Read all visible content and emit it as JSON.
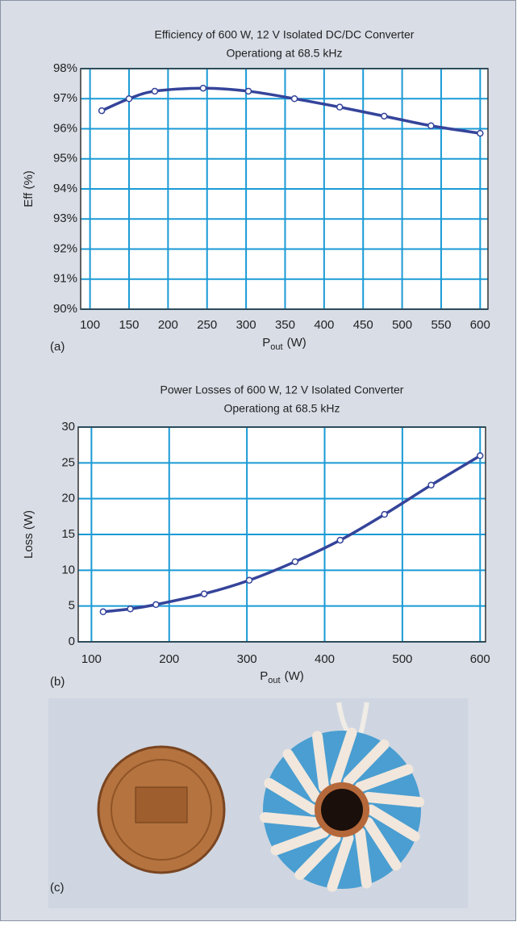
{
  "chart_data": [
    {
      "type": "line",
      "title": [
        "Efficiency of 600 W, 12 V Isolated DC/DC Converter",
        "Operationg at 68.5 kHz"
      ],
      "xlabel": {
        "base": "P",
        "sub": "out",
        "unit": "(W)"
      },
      "ylabel": "Eff (%)",
      "x": [
        115,
        150,
        183,
        245,
        303,
        362,
        420,
        477,
        537,
        600
      ],
      "values": [
        96.6,
        97.0,
        97.25,
        97.35,
        97.25,
        97.0,
        96.72,
        96.42,
        96.1,
        95.85
      ],
      "color": "#35449a",
      "grid_color": "#1a9ad6",
      "markers": true,
      "grid": true,
      "xlim": [
        88,
        610
      ],
      "xticks": [
        100,
        150,
        200,
        250,
        300,
        350,
        400,
        450,
        500,
        550,
        600
      ],
      "ylim": [
        90,
        98
      ],
      "yticks": [
        {
          "value": 90,
          "label": "90%"
        },
        {
          "value": 91,
          "label": "91%"
        },
        {
          "value": 92,
          "label": "92%"
        },
        {
          "value": 93,
          "label": "93%"
        },
        {
          "value": 94,
          "label": "94%"
        },
        {
          "value": 95,
          "label": "95%"
        },
        {
          "value": 96,
          "label": "96%"
        },
        {
          "value": 97,
          "label": "97%"
        },
        {
          "value": 98,
          "label": "98%"
        }
      ],
      "panel_label": "(a)"
    },
    {
      "type": "line",
      "title": [
        "Power Losses of 600 W, 12 V Isolated Converter",
        "Operationg at 68.5 kHz"
      ],
      "xlabel": {
        "base": "P",
        "sub": "out",
        "unit": "(W)"
      },
      "ylabel": "Loss (W)",
      "x": [
        115,
        150,
        183,
        245,
        303,
        362,
        420,
        477,
        537,
        600
      ],
      "values": [
        4.2,
        4.6,
        5.2,
        6.7,
        8.6,
        11.2,
        14.2,
        17.8,
        21.9,
        26.0
      ],
      "color": "#35449a",
      "grid_color": "#1a9ad6",
      "markers": true,
      "grid": true,
      "xlim": [
        83,
        607
      ],
      "xticks": [
        100,
        200,
        300,
        400,
        500,
        600
      ],
      "ylim": [
        0,
        30
      ],
      "yticks": [
        0,
        5,
        10,
        15,
        20,
        25,
        30
      ],
      "panel_label": "(b)"
    }
  ],
  "photo": {
    "label": "(c)"
  }
}
